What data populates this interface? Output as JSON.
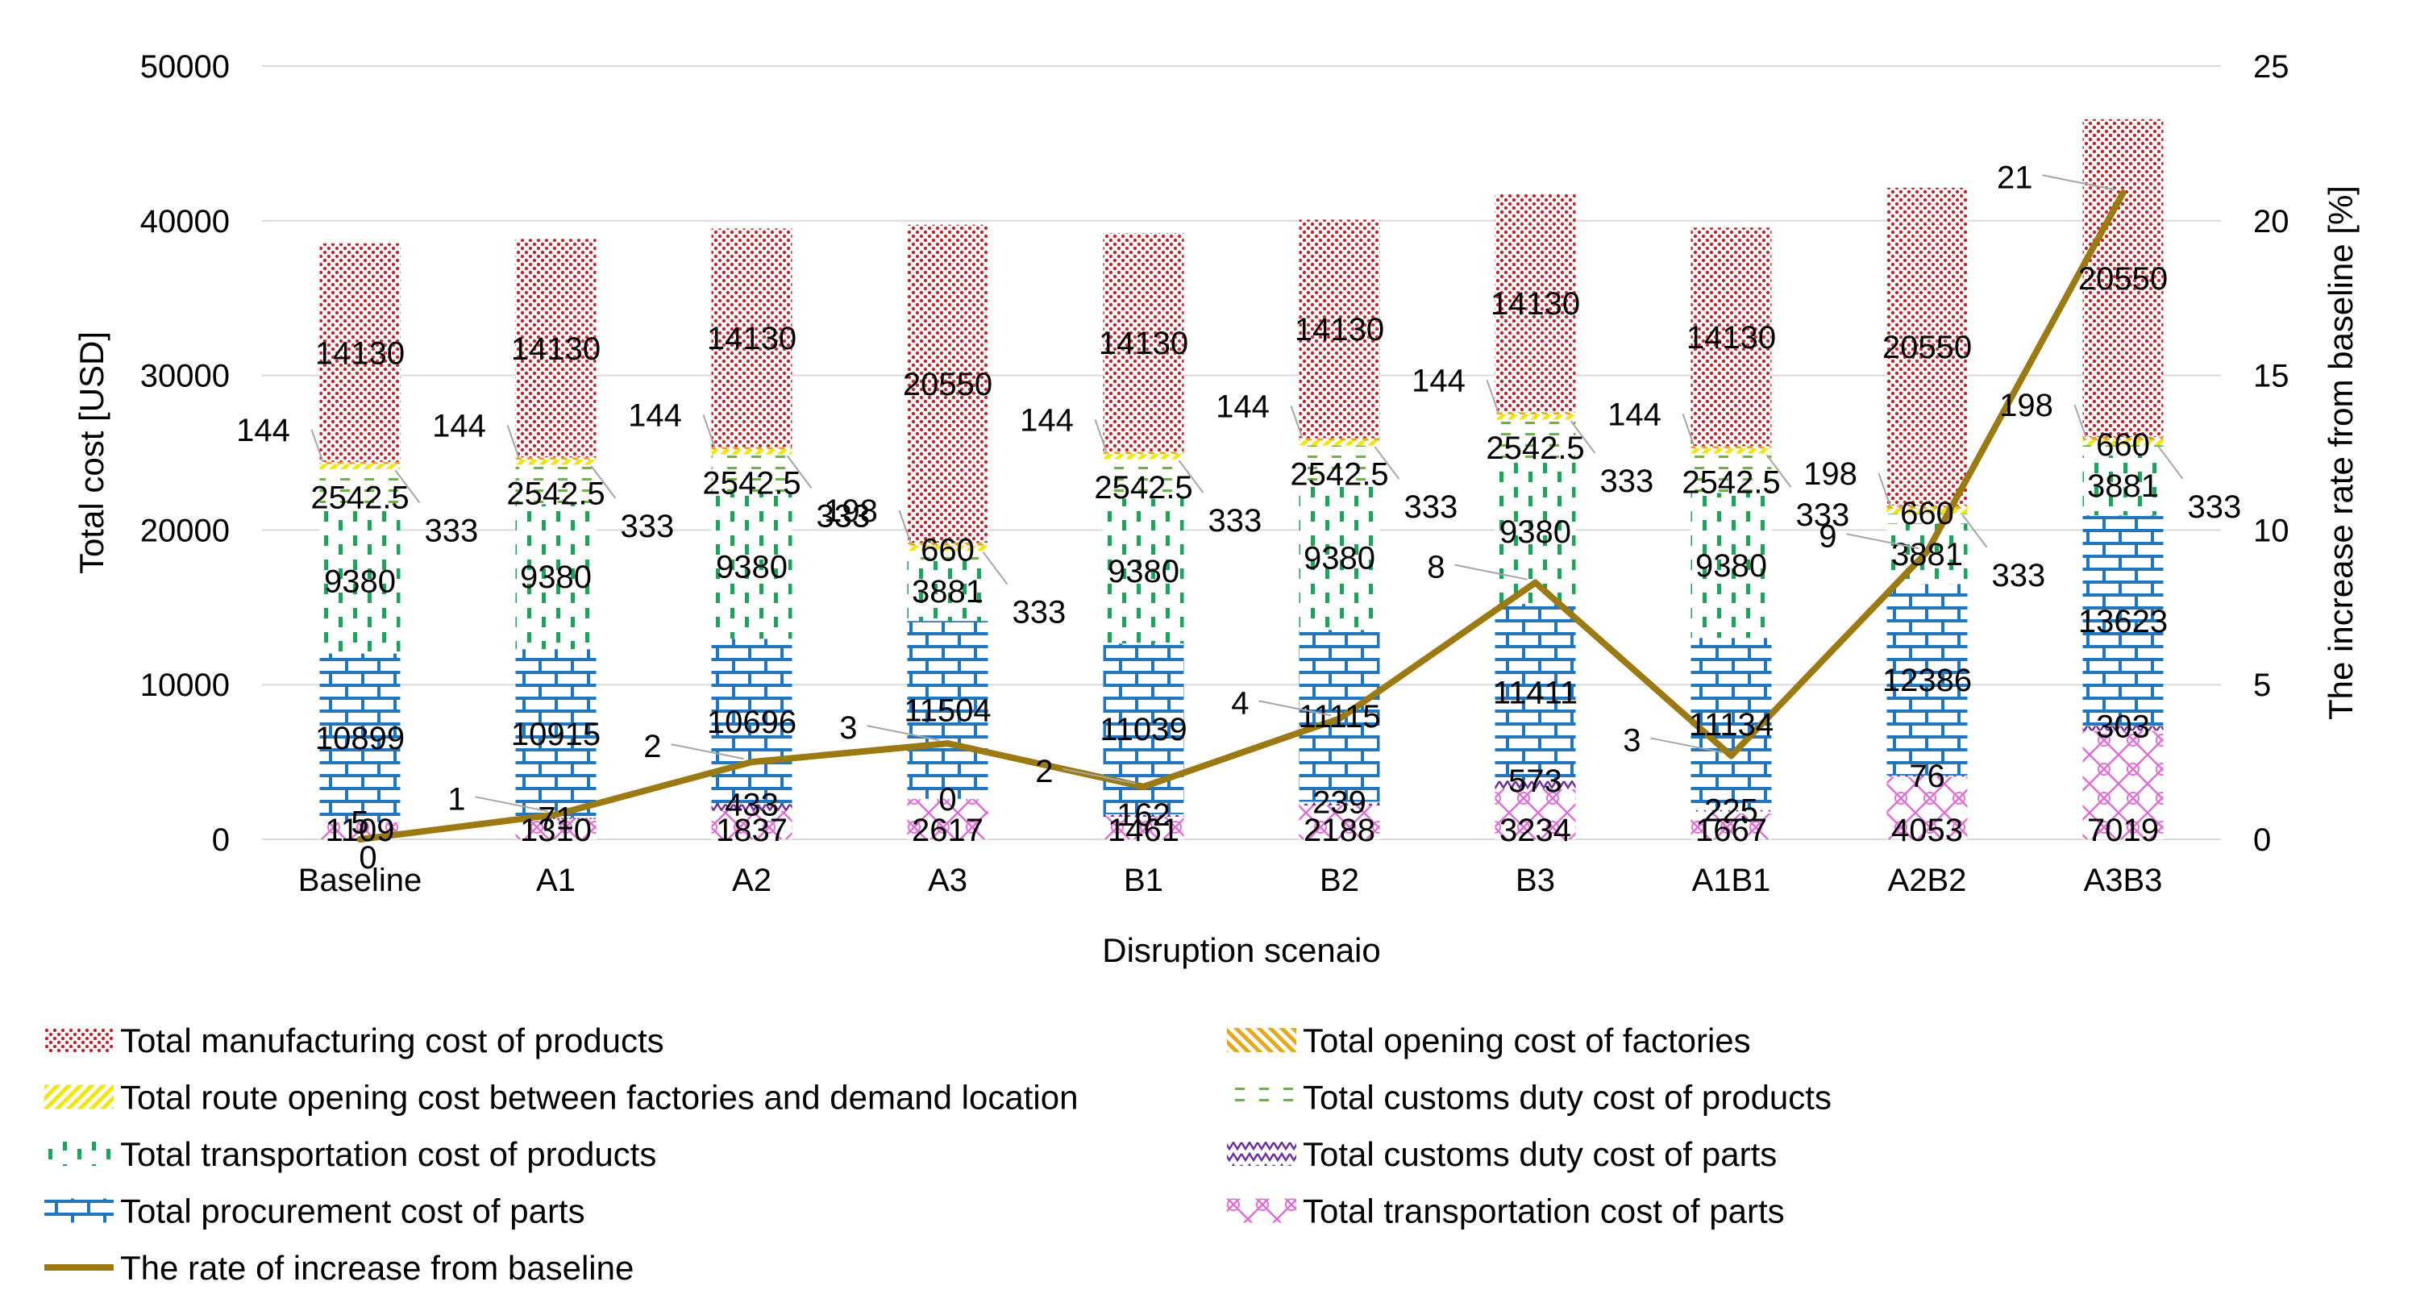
{
  "chart_data": {
    "type": "bar",
    "stacked": true,
    "xlabel": "Disruption scenaio",
    "ylabel": "Total cost [USD]",
    "y2label": "The increase rate from baseline [%]",
    "ylim": [
      0,
      50000
    ],
    "y2lim": [
      0,
      25
    ],
    "yticks": [
      "0",
      "10000",
      "20000",
      "30000",
      "40000",
      "50000"
    ],
    "y2ticks": [
      "0",
      "5",
      "10",
      "15",
      "20",
      "25"
    ],
    "categories": [
      "Baseline",
      "A1",
      "A2",
      "A3",
      "B1",
      "B2",
      "B3",
      "A1B1",
      "A2B2",
      "A3B3"
    ],
    "series": [
      {
        "key": "tp",
        "name": "Total transportation cost of parts",
        "color": "#e26fd6",
        "pattern": "crosshatch",
        "values": [
          1109,
          1310,
          1837,
          2617,
          1461,
          2188,
          3234,
          1667,
          4053,
          7019
        ],
        "labels": [
          "1109",
          "1310",
          "1837",
          "2617",
          "1461",
          "2188",
          "3234",
          "1667",
          "4053",
          "7019"
        ]
      },
      {
        "key": "cdp",
        "name": "Total customs duty cost of parts",
        "color": "#7030a0",
        "pattern": "zigzag",
        "values": [
          5,
          71,
          433,
          0,
          162,
          239,
          573,
          225,
          76,
          303
        ],
        "labels": [
          "5",
          "71",
          "433",
          "0",
          "162",
          "239",
          "573",
          "225",
          "76",
          "303"
        ]
      },
      {
        "key": "pp",
        "name": "Total procurement cost of parts",
        "color": "#1f77c4",
        "pattern": "brick",
        "values": [
          10899,
          10915,
          10696,
          11504,
          11039,
          11115,
          11411,
          11134,
          12386,
          13623
        ],
        "labels": [
          "10899",
          "10915",
          "10696",
          "11504",
          "11039",
          "11115",
          "11411",
          "11134",
          "12386",
          "13623"
        ]
      },
      {
        "key": "tpr",
        "name": "Total transportation cost of products",
        "color": "#1aa55a",
        "pattern": "dashes",
        "values": [
          9380,
          9380,
          9380,
          3881,
          9380,
          9380,
          9380,
          9380,
          3881,
          3881
        ],
        "labels": [
          "9380",
          "9380",
          "9380",
          "3881",
          "9380",
          "9380",
          "9380",
          "9380",
          "3881",
          "3881"
        ]
      },
      {
        "key": "cdpr",
        "name": "Total customs duty cost of products",
        "color": "#66bb33",
        "pattern": "dashed",
        "values": [
          2542.5,
          2542.5,
          2542.5,
          660,
          2542.5,
          2542.5,
          2542.5,
          2542.5,
          660,
          660
        ],
        "labels": [
          "2542.5",
          "2542.5",
          "2542.5",
          "660",
          "2542.5",
          "2542.5",
          "2542.5",
          "2542.5",
          "660",
          "660"
        ]
      },
      {
        "key": "route",
        "name": "Total route opening cost between factories and demand location",
        "color": "#f2e60f",
        "pattern": "diag",
        "values": [
          333,
          333,
          333,
          333,
          333,
          333,
          333,
          333,
          333,
          333
        ],
        "labels": [
          "333",
          "333",
          "333",
          "333",
          "333",
          "333",
          "333",
          "333",
          "333",
          "333"
        ]
      },
      {
        "key": "of",
        "name": "Total opening cost of factories",
        "color": "#e6a81c",
        "pattern": "diag",
        "values": [
          144,
          144,
          144,
          198,
          144,
          144,
          144,
          144,
          198,
          198
        ],
        "labels": [
          "144",
          "144",
          "144",
          "198",
          "144",
          "144",
          "144",
          "144",
          "198",
          "198"
        ]
      },
      {
        "key": "mfg",
        "name": "Total manufacturing cost of products",
        "color": "#c0262c",
        "pattern": "dots",
        "values": [
          14130,
          14130,
          14130,
          20550,
          14130,
          14130,
          14130,
          14130,
          20550,
          20550
        ],
        "labels": [
          "14130",
          "14130",
          "14130",
          "20550",
          "14130",
          "14130",
          "14130",
          "14130",
          "20550",
          "20550"
        ]
      }
    ],
    "line": {
      "name": "The rate of increase from baseline",
      "axis": "y2",
      "color": "#9c7a12",
      "values": [
        0,
        0.8,
        2.5,
        3.1,
        1.7,
        3.9,
        8.3,
        2.7,
        9.3,
        20.9
      ],
      "labels": [
        "0",
        "1",
        "2",
        "3",
        "2",
        "4",
        "8",
        "3",
        "9",
        "21"
      ]
    },
    "legend": {
      "placement": "bottom",
      "items": [
        "Total manufacturing cost of products",
        "Total opening cost of factories",
        "Total route opening cost between factories and demand location",
        "Total customs duty cost of products",
        "Total transportation cost of products",
        "Total customs duty cost of parts",
        "Total procurement cost of parts",
        "Total transportation cost of parts",
        "The rate of increase from baseline"
      ]
    }
  }
}
